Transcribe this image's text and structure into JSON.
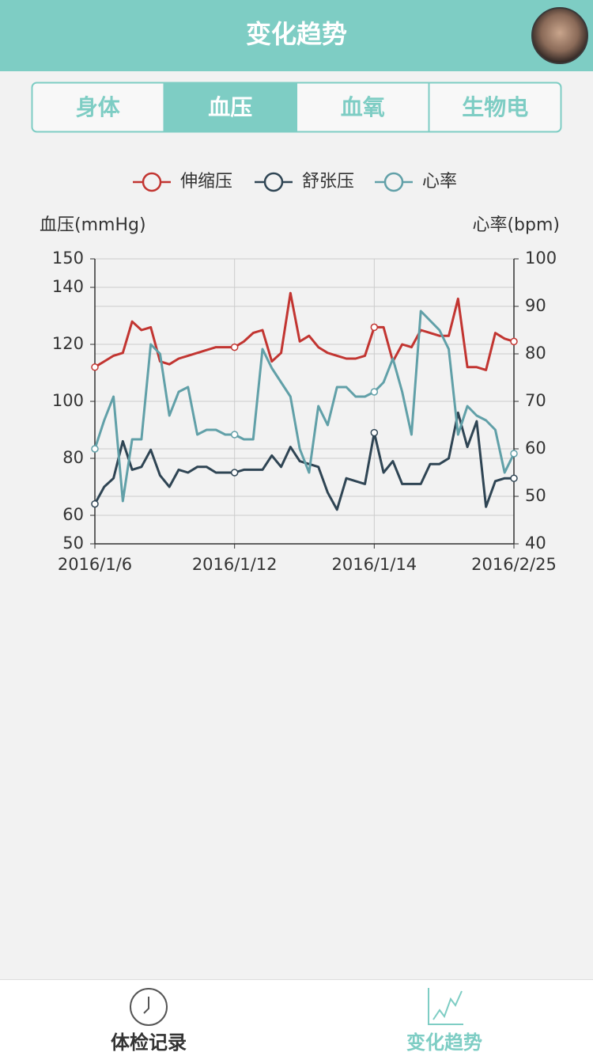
{
  "header": {
    "title": "变化趋势"
  },
  "tabs": {
    "items": [
      "身体",
      "血压",
      "血氧",
      "生物电"
    ],
    "active": 1
  },
  "chart_data": {
    "type": "line",
    "ylabel": "血压(mmHg)",
    "y2label": "心率(bpm)",
    "categories": [
      "2016/1/6",
      null,
      null,
      null,
      null,
      null,
      null,
      null,
      null,
      null,
      null,
      null,
      null,
      null,
      null,
      "2016/1/12",
      null,
      null,
      null,
      null,
      null,
      null,
      null,
      null,
      null,
      null,
      null,
      null,
      null,
      null,
      "2016/1/14",
      null,
      null,
      null,
      null,
      null,
      null,
      null,
      null,
      null,
      null,
      null,
      null,
      null,
      null,
      "2016/2/25"
    ],
    "series": [
      {
        "name": "伸缩压",
        "color": "#c23531",
        "values": [
          112,
          114,
          116,
          117,
          128,
          125,
          126,
          114,
          113,
          115,
          116,
          117,
          118,
          119,
          119,
          119,
          121,
          124,
          125,
          114,
          117,
          138,
          121,
          123,
          119,
          117,
          116,
          115,
          115,
          116,
          126,
          126,
          114,
          120,
          119,
          125,
          124,
          123,
          123,
          136,
          112,
          112,
          111,
          124,
          122,
          121
        ]
      },
      {
        "name": "舒张压",
        "color": "#2f4554",
        "values": [
          64,
          70,
          73,
          86,
          76,
          77,
          83,
          74,
          70,
          76,
          75,
          77,
          77,
          75,
          75,
          75,
          76,
          76,
          76,
          81,
          77,
          84,
          79,
          78,
          77,
          68,
          62,
          73,
          72,
          71,
          89,
          75,
          79,
          71,
          71,
          71,
          78,
          78,
          80,
          96,
          84,
          93,
          63,
          72,
          73,
          73
        ]
      },
      {
        "name": "心率",
        "color": "#61a0a8",
        "axis": "y2",
        "values": [
          60,
          66,
          71,
          49,
          62,
          62,
          82,
          80,
          67,
          72,
          73,
          63,
          64,
          64,
          63,
          63,
          62,
          62,
          81,
          77,
          74,
          71,
          60,
          55,
          69,
          65,
          73,
          73,
          71,
          71,
          72,
          74,
          79,
          72,
          63,
          89,
          87,
          85,
          81,
          63,
          69,
          67,
          66,
          64,
          55,
          59
        ]
      }
    ],
    "ylim": [
      50,
      150
    ],
    "yticks": [
      50,
      60,
      80,
      100,
      120,
      140,
      150
    ],
    "y2lim": [
      40,
      100
    ],
    "y2ticks": [
      40,
      50,
      60,
      70,
      80,
      90,
      100
    ],
    "grid": true
  },
  "nav": {
    "items": [
      "体检记录",
      "变化趋势"
    ],
    "active": 1
  }
}
